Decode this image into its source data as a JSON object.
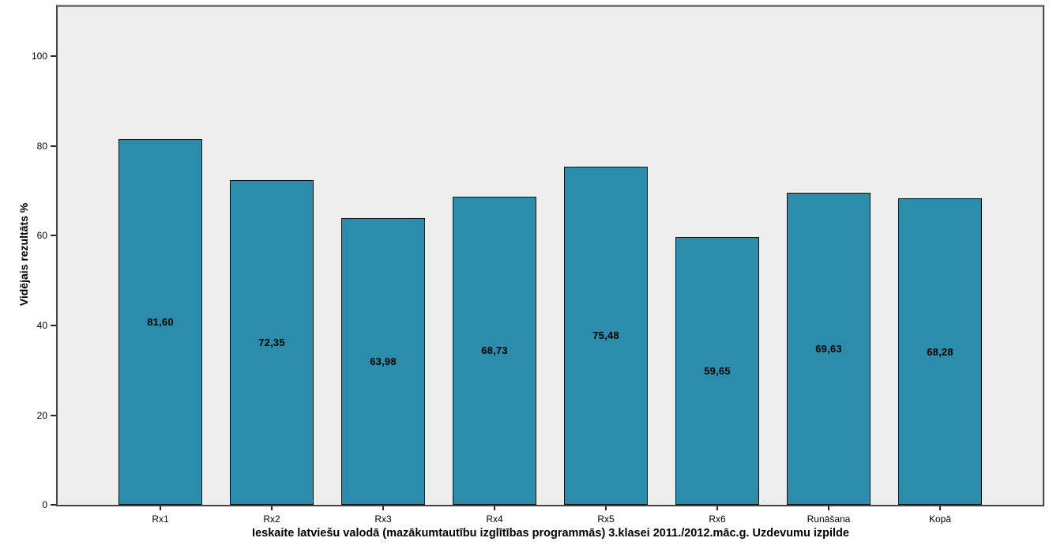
{
  "chart_data": {
    "type": "bar",
    "categories": [
      "Rx1",
      "Rx2",
      "Rx3",
      "Rx4",
      "Rx5",
      "Rx6",
      "Runāšana",
      "Kopā"
    ],
    "values": [
      81.6,
      72.35,
      63.98,
      68.73,
      75.48,
      59.65,
      69.63,
      68.28
    ],
    "value_labels": [
      "81,60",
      "72,35",
      "63,98",
      "68,73",
      "75,48",
      "59,65",
      "69,63",
      "68,28"
    ],
    "xlabel": "Ieskaite latviešu valodā (mazākumtautību izglītības programmās) 3.klasei 2011./2012.māc.g. Uzdevumu izpilde",
    "ylabel": "Vidējais rezultāts %",
    "yticks": [
      0,
      20,
      40,
      60,
      80,
      100
    ],
    "ylim": [
      0,
      111
    ],
    "grid": false,
    "legend": false,
    "bar_color": "#2b8cab",
    "bar_border_color": "#101010",
    "plot_background": "#eeeeee",
    "outer_background": "#ffffff",
    "value_label_position": "center-of-bar"
  }
}
